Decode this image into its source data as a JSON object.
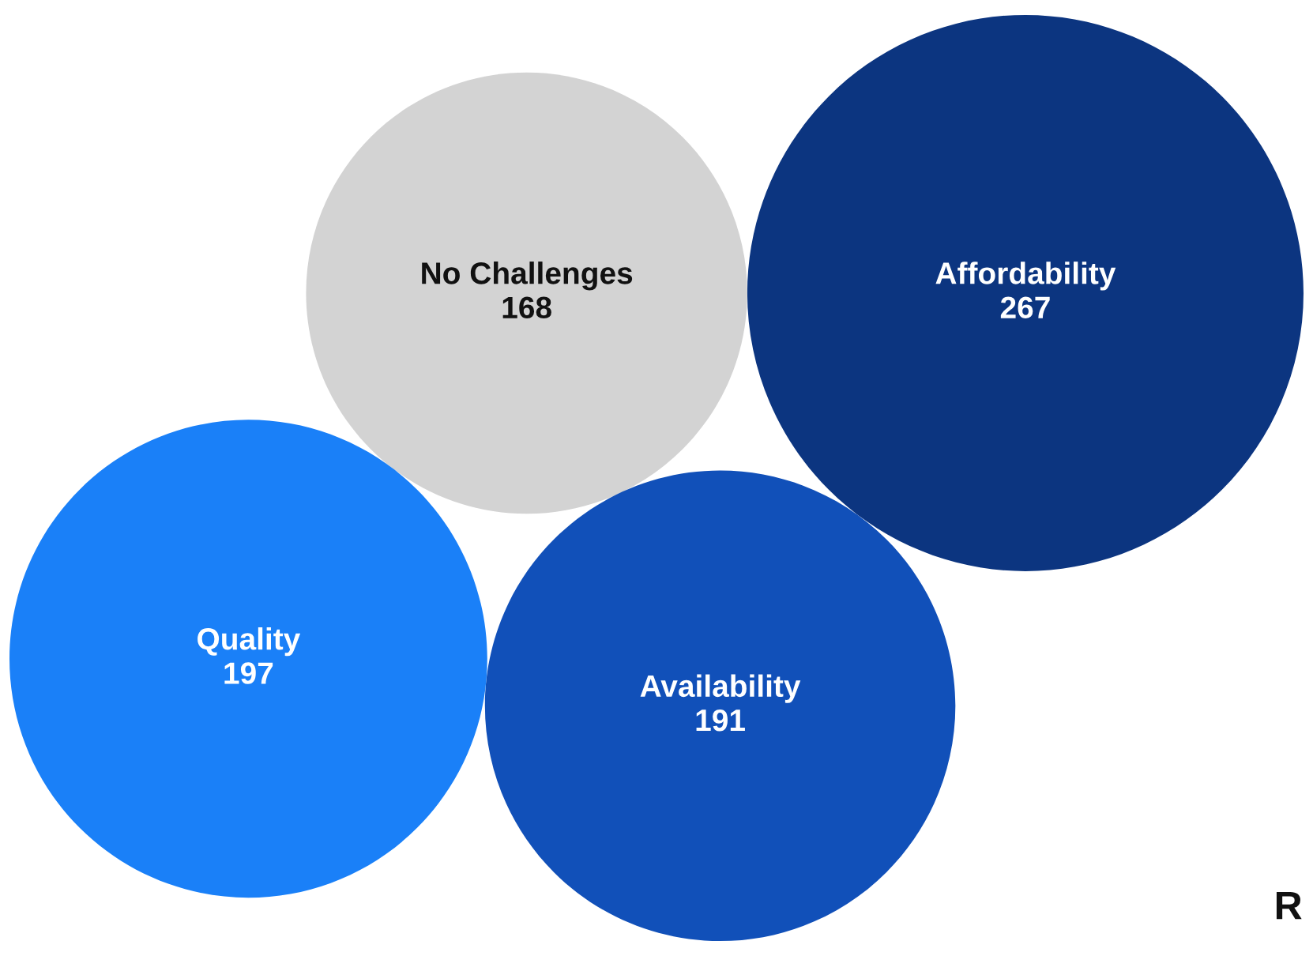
{
  "chart_data": {
    "type": "other",
    "categories": [
      "Affordability",
      "No Challenges",
      "Availability",
      "Quality"
    ],
    "values": [
      267,
      168,
      191,
      197
    ],
    "colors": [
      "#0c3580",
      "#d3d3d3",
      "#1150b9",
      "#1a80f8"
    ],
    "data_labels": true,
    "annotations": [
      "R"
    ]
  }
}
